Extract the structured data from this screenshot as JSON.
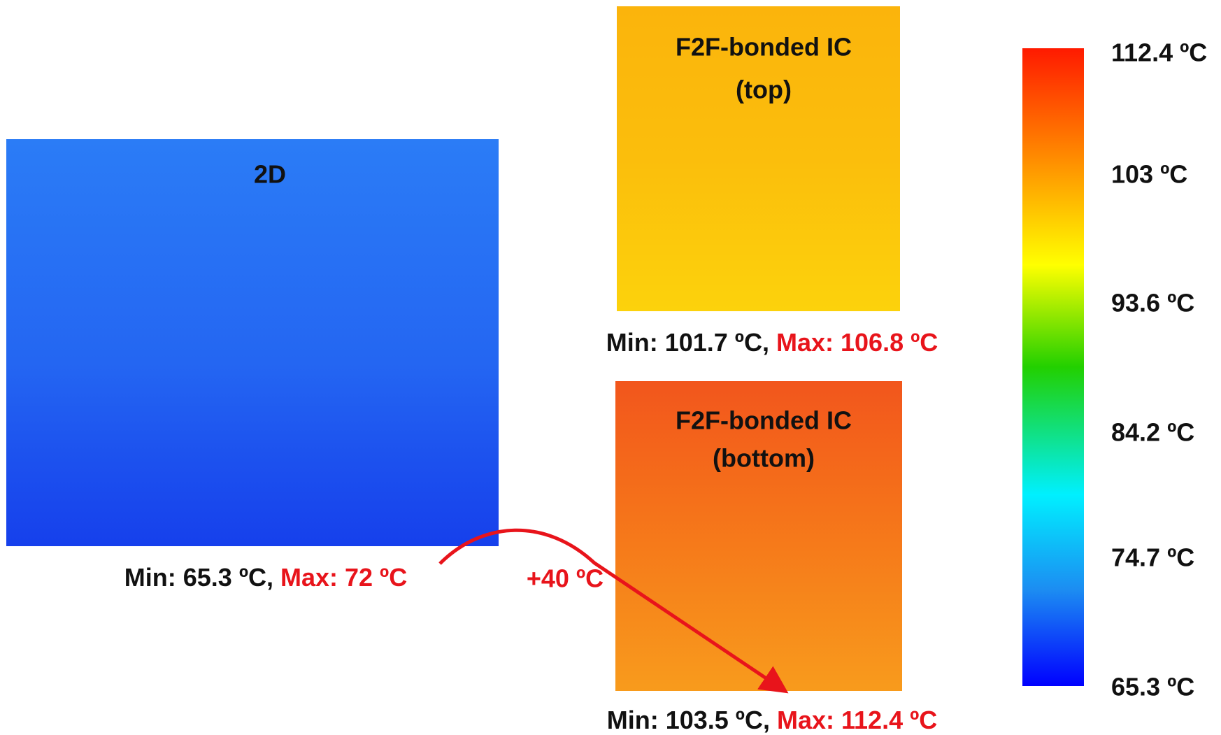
{
  "panels": [
    {
      "label_lines": [
        "2D"
      ],
      "min_text": "Min: 65.3 ºC,",
      "max_text": "Max: 72 ºC"
    },
    {
      "label_lines": [
        "F2F-bonded IC",
        "(top)"
      ],
      "min_text": "Min: 101.7 ºC,",
      "max_text": "Max: 106.8 ºC"
    },
    {
      "label_lines": [
        "F2F-bonded IC",
        "(bottom)"
      ],
      "min_text": "Min: 103.5 ºC,",
      "max_text": "Max: 112.4 ºC"
    }
  ],
  "annotation": "+40 ºC",
  "colorbar": {
    "labels": [
      "112.4 ºC",
      "103 ºC",
      "93.6 ºC",
      "84.2 ºC",
      "74.7 ºC",
      "65.3 ºC"
    ]
  }
}
